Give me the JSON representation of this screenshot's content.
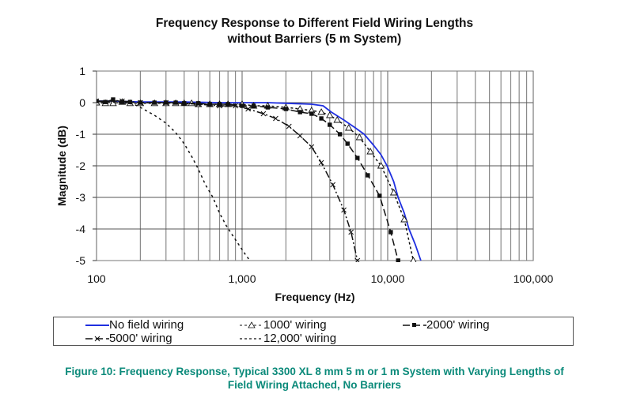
{
  "chart_data": {
    "type": "line",
    "title": [
      "Frequency Response to Different Field Wiring Lengths",
      "without Barriers (5 m System)"
    ],
    "xlabel": "Frequency (Hz)",
    "ylabel": "Magnitude (dB)",
    "xscale": "log",
    "xlim": [
      100,
      100000
    ],
    "ylim": [
      -5,
      1
    ],
    "xticks": [
      100,
      1000,
      10000,
      100000
    ],
    "xtick_labels": [
      "100",
      "1,000",
      "10,000",
      "100,000"
    ],
    "yticks": [
      1,
      0,
      -1,
      -2,
      -3,
      -4,
      -5
    ],
    "ytick_labels": [
      "1",
      "0",
      "-1",
      "-2",
      "-3",
      "-4",
      "-5"
    ],
    "grid": true,
    "legend_position": "bottom",
    "series": [
      {
        "name": "No field wiring",
        "color": "#1f2fe0",
        "style": "solid",
        "marker": "none",
        "x": [
          100,
          130,
          200,
          400,
          700,
          1000,
          1500,
          2000,
          3000,
          3600,
          4100,
          5000,
          6000,
          6900,
          8000,
          9000,
          9900,
          11000,
          11800,
          13000,
          14000,
          15500,
          16900
        ],
        "y": [
          0.05,
          0.05,
          0.02,
          0.02,
          0.0,
          0.0,
          0.0,
          -0.02,
          -0.05,
          -0.1,
          -0.3,
          -0.55,
          -0.8,
          -1.0,
          -1.35,
          -1.65,
          -2.0,
          -2.5,
          -3.0,
          -3.5,
          -4.0,
          -4.5,
          -5.0
        ]
      },
      {
        "name": "1000' wiring",
        "color": "#111111",
        "style": "dash-dot",
        "marker": "open-triangle",
        "x": [
          100,
          115,
          130,
          150,
          170,
          200,
          250,
          300,
          350,
          400,
          450,
          500,
          600,
          700,
          800,
          1000,
          1200,
          1500,
          2000,
          2500,
          3000,
          3500,
          4000,
          4500,
          5400,
          6400,
          7600,
          9000,
          11000,
          13000,
          15000
        ],
        "y": [
          0.0,
          -0.02,
          -0.02,
          0.02,
          -0.02,
          -0.02,
          -0.02,
          -0.02,
          -0.02,
          -0.02,
          -0.02,
          -0.05,
          -0.05,
          -0.05,
          -0.05,
          -0.05,
          -0.1,
          -0.1,
          -0.15,
          -0.2,
          -0.25,
          -0.3,
          -0.4,
          -0.55,
          -0.8,
          -1.1,
          -1.55,
          -2.0,
          -2.85,
          -3.7,
          -5.0
        ]
      },
      {
        "name": "2000' wiring",
        "color": "#111111",
        "style": "long-dash",
        "marker": "filled-square",
        "x": [
          100,
          115,
          130,
          150,
          170,
          200,
          250,
          300,
          350,
          400,
          500,
          600,
          700,
          800,
          1000,
          1200,
          1500,
          2000,
          2500,
          3000,
          3500,
          4000,
          4700,
          5300,
          6200,
          7300,
          8800,
          10500,
          11800
        ],
        "y": [
          0.05,
          0.02,
          0.1,
          0.02,
          0.02,
          0.0,
          0.0,
          0.0,
          0.0,
          -0.02,
          -0.02,
          -0.05,
          -0.05,
          -0.05,
          -0.1,
          -0.1,
          -0.15,
          -0.2,
          -0.3,
          -0.35,
          -0.5,
          -0.7,
          -1.0,
          -1.3,
          -1.75,
          -2.3,
          -2.95,
          -4.1,
          -5.0
        ]
      },
      {
        "name": "5000' wiring",
        "color": "#111111",
        "style": "long-dash-dot",
        "marker": "x",
        "x": [
          100,
          150,
          200,
          300,
          500,
          700,
          900,
          1100,
          1400,
          1700,
          2100,
          2500,
          3000,
          3500,
          4200,
          5000,
          5600,
          6200
        ],
        "y": [
          0.05,
          0.05,
          0.0,
          0.0,
          -0.05,
          -0.1,
          -0.1,
          -0.2,
          -0.35,
          -0.5,
          -0.75,
          -1.05,
          -1.4,
          -1.9,
          -2.6,
          -3.4,
          -4.1,
          -5.0
        ]
      },
      {
        "name": "12,000' wiring",
        "color": "#111111",
        "style": "dotted",
        "marker": "none",
        "x": [
          100,
          150,
          180,
          200,
          250,
          300,
          350,
          400,
          450,
          500,
          560,
          630,
          700,
          780,
          860,
          950,
          1050,
          1130
        ],
        "y": [
          0.05,
          0.0,
          -0.05,
          -0.15,
          -0.4,
          -0.65,
          -0.95,
          -1.3,
          -1.7,
          -2.1,
          -2.6,
          -3.0,
          -3.5,
          -3.9,
          -4.2,
          -4.5,
          -4.8,
          -5.0
        ]
      }
    ]
  },
  "caption": [
    "Figure 10:  Frequency Response, Typical 3300 XL 8 mm 5 m or 1 m System with Varying Lengths of",
    "Field Wiring Attached, No Barriers"
  ]
}
